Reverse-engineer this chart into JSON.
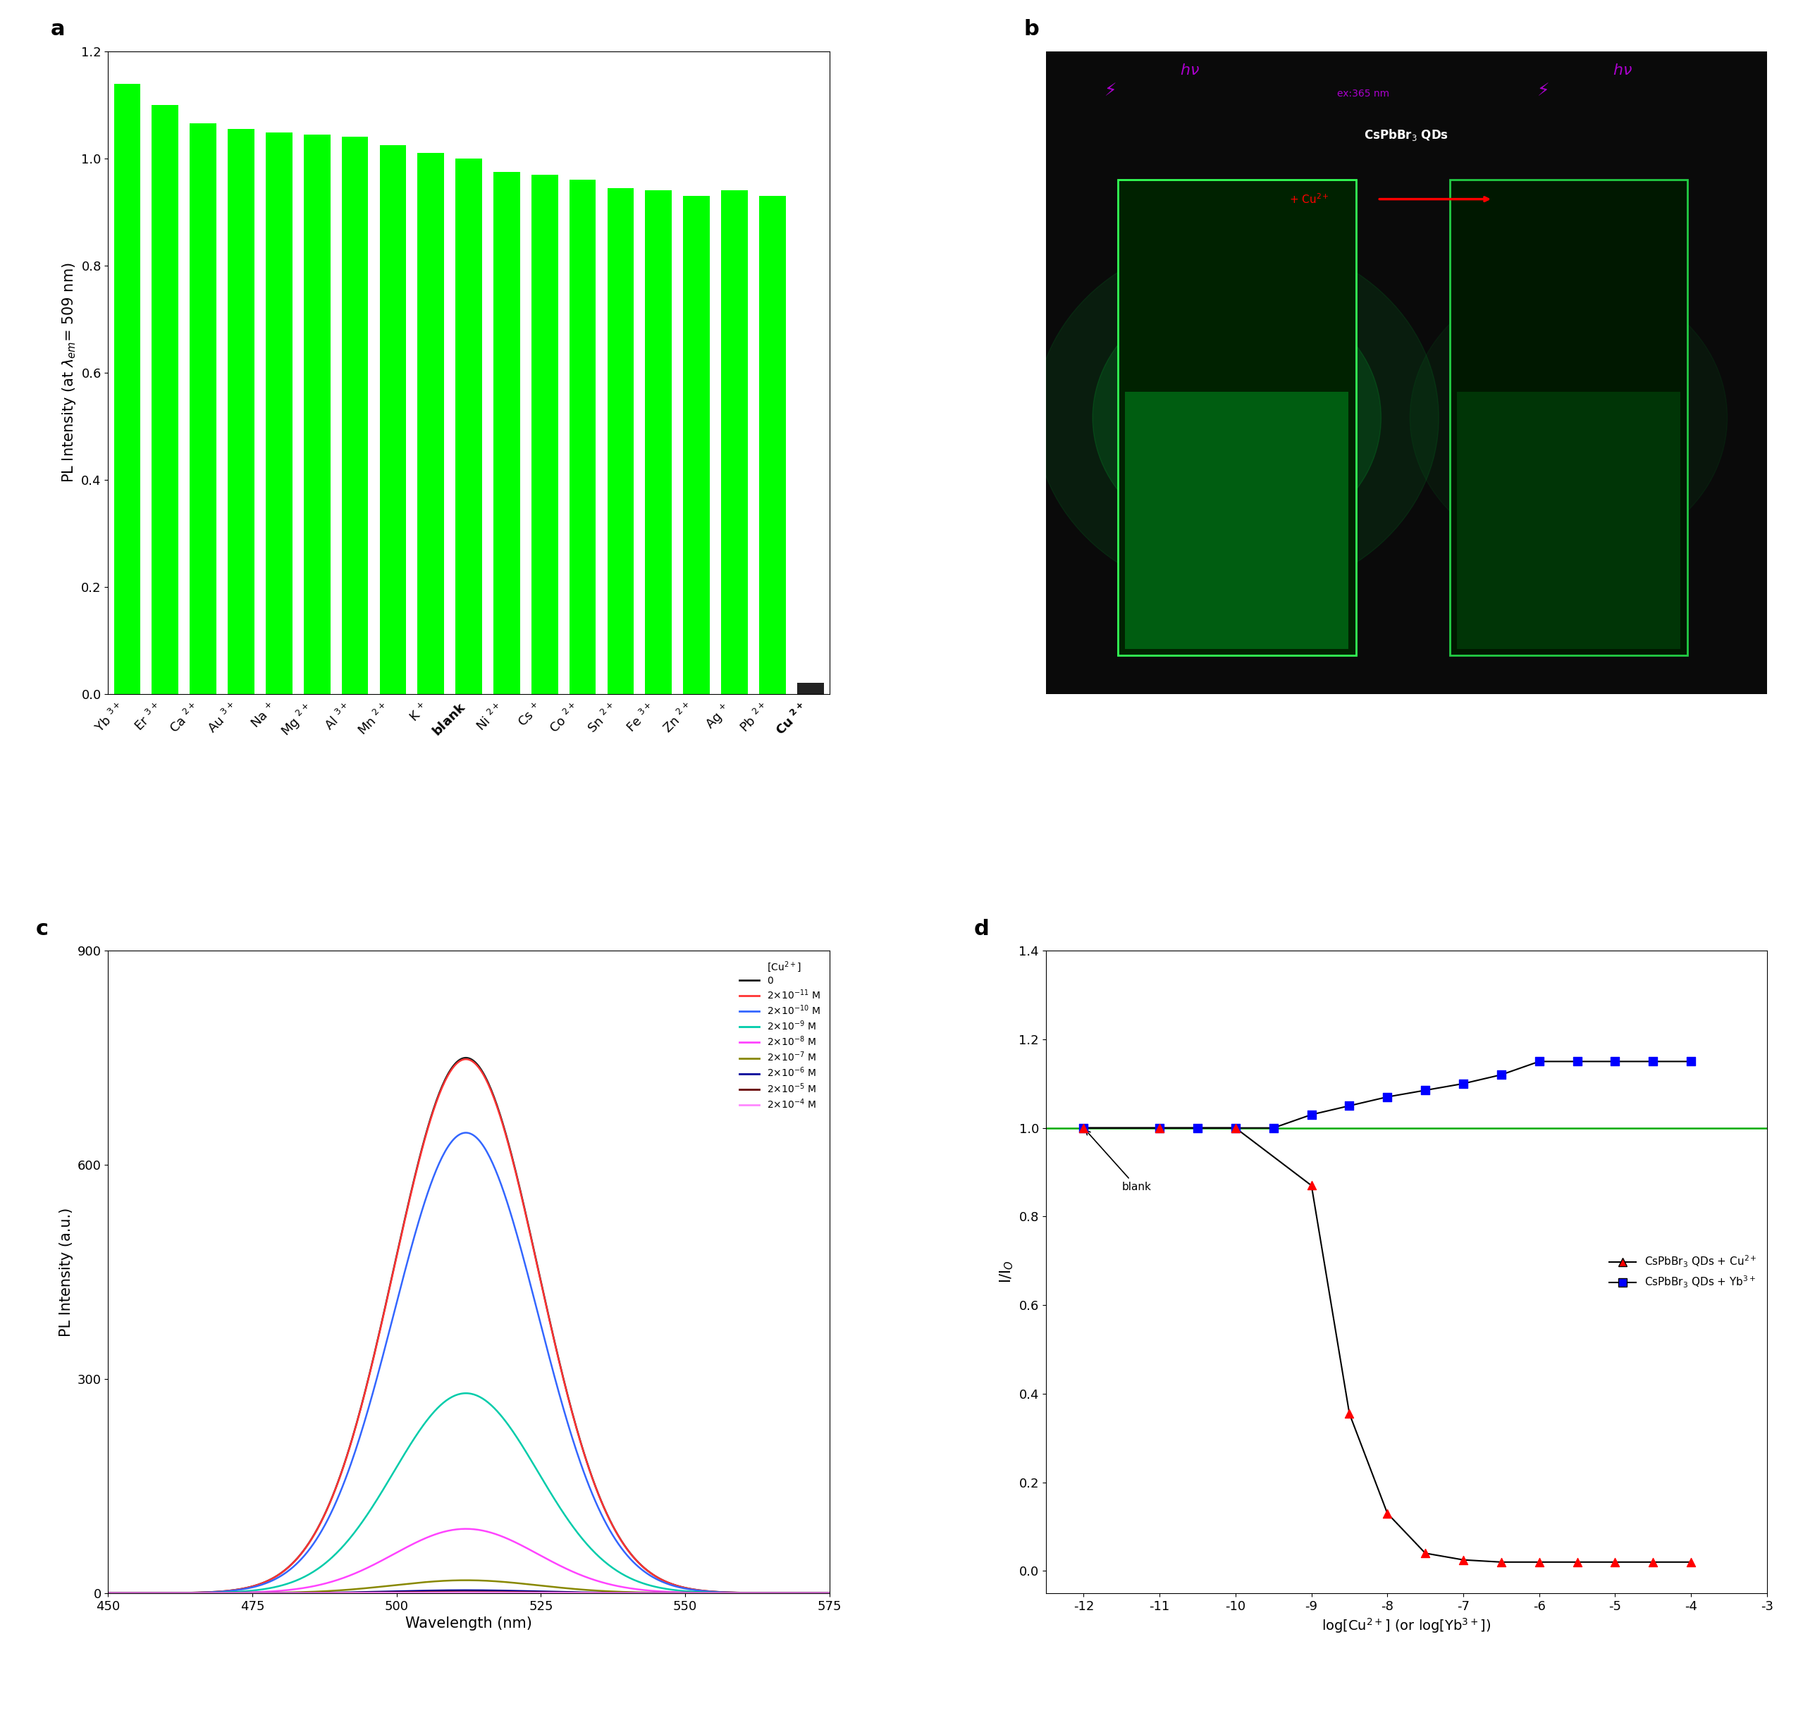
{
  "panel_a_bars": {
    "labels": [
      "Yb 3+",
      "Er 3+",
      "Ca 2+",
      "Au 3+",
      "Na +",
      "Mg 2+",
      "Al 3+",
      "Mn 2+",
      "K +",
      "blank",
      "Ni 2+",
      "Cs +",
      "Co 2+",
      "Sn 2+",
      "Fe 3+",
      "Zn 2+",
      "Ag +",
      "Pb 2+",
      "Cu 2+"
    ],
    "values": [
      1.14,
      1.1,
      1.065,
      1.055,
      1.048,
      1.044,
      1.04,
      1.025,
      1.01,
      1.0,
      0.975,
      0.97,
      0.96,
      0.945,
      0.94,
      0.93,
      0.94,
      0.93,
      0.02
    ],
    "colors": [
      "#00FF00",
      "#00FF00",
      "#00FF00",
      "#00FF00",
      "#00FF00",
      "#00FF00",
      "#00FF00",
      "#00FF00",
      "#00FF00",
      "#00FF00",
      "#00FF00",
      "#00FF00",
      "#00FF00",
      "#00FF00",
      "#00FF00",
      "#00FF00",
      "#00FF00",
      "#00FF00",
      "#222222"
    ]
  },
  "panel_c": {
    "xlabel": "Wavelength (nm)",
    "ylabel": "PL Intensity (a.u.)",
    "xlim": [
      450,
      575
    ],
    "ylim": [
      0,
      900
    ],
    "yticks": [
      0,
      300,
      600,
      900
    ],
    "xticks": [
      450,
      475,
      500,
      525,
      550,
      575
    ],
    "peak": 512,
    "sigma": 12.5,
    "amplitudes": [
      750,
      748,
      645,
      280,
      90,
      18,
      4,
      2,
      1
    ],
    "line_colors": [
      "#1a1a1a",
      "#ff3333",
      "#3366ff",
      "#00ccaa",
      "#ff44ff",
      "#888800",
      "#000099",
      "#660000",
      "#ff88ff"
    ]
  },
  "panel_d": {
    "xlabel": "log[Cu2+] (or log[Yb3+])",
    "ylabel": "I/I_O",
    "xlim": [
      -12.5,
      -3
    ],
    "ylim": [
      -0.05,
      1.4
    ],
    "yticks": [
      0.0,
      0.2,
      0.4,
      0.6,
      0.8,
      1.0,
      1.2,
      1.4
    ],
    "xticks": [
      -12,
      -11,
      -10,
      -9,
      -8,
      -7,
      -6,
      -5,
      -4,
      -3
    ],
    "cu_x": [
      -12,
      -11,
      -10,
      -9,
      -8.5,
      -8,
      -7.5,
      -7,
      -6.5,
      -6,
      -5.5,
      -5,
      -4.5,
      -4
    ],
    "cu_y": [
      1.0,
      1.0,
      1.0,
      0.87,
      0.355,
      0.13,
      0.04,
      0.025,
      0.02,
      0.02,
      0.02,
      0.02,
      0.02,
      0.02
    ],
    "yb_x": [
      -12,
      -11,
      -10.5,
      -10,
      -9.5,
      -9,
      -8.5,
      -8,
      -7.5,
      -7,
      -6.5,
      -6,
      -5.5,
      -5,
      -4.5,
      -4
    ],
    "yb_y": [
      1.0,
      1.0,
      1.0,
      1.0,
      1.0,
      1.03,
      1.05,
      1.07,
      1.085,
      1.1,
      1.12,
      1.15,
      1.15,
      1.15,
      1.15,
      1.15
    ]
  }
}
